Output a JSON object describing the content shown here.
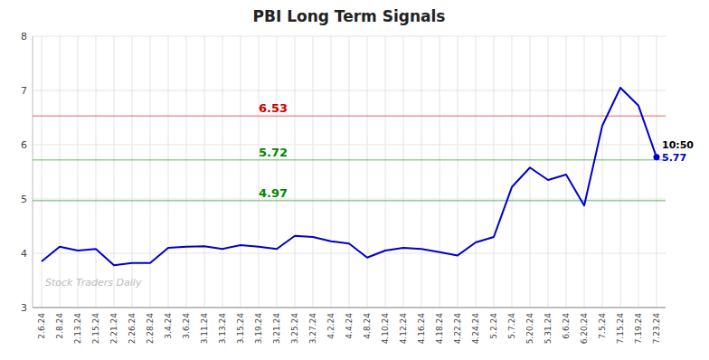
{
  "chart_data": {
    "type": "line",
    "title": "PBI Long Term Signals",
    "categories": [
      "2.6.24",
      "2.8.24",
      "2.13.24",
      "2.15.24",
      "2.21.24",
      "2.26.24",
      "2.28.24",
      "3.4.24",
      "3.6.24",
      "3.11.24",
      "3.13.24",
      "3.15.24",
      "3.19.24",
      "3.21.24",
      "3.25.24",
      "3.27.24",
      "4.2.24",
      "4.4.24",
      "4.8.24",
      "4.10.24",
      "4.12.24",
      "4.16.24",
      "4.18.24",
      "4.22.24",
      "4.24.24",
      "5.2.24",
      "5.7.24",
      "5.20.24",
      "5.31.24",
      "6.6.24",
      "6.20.24",
      "7.5.24",
      "7.15.24",
      "7.19.24",
      "7.23.24"
    ],
    "values": [
      3.85,
      4.12,
      4.05,
      4.08,
      3.78,
      3.82,
      3.82,
      4.1,
      4.12,
      4.13,
      4.08,
      4.15,
      4.12,
      4.08,
      4.32,
      4.3,
      4.22,
      4.18,
      3.92,
      4.05,
      4.1,
      4.08,
      4.02,
      3.96,
      4.2,
      4.3,
      5.22,
      5.58,
      5.35,
      5.45,
      4.88,
      6.35,
      7.05,
      6.72,
      5.77
    ],
    "color": "#0000cc",
    "hlines": [
      {
        "value": 6.53,
        "label": "6.53",
        "color": "#cc0000"
      },
      {
        "value": 5.72,
        "label": "5.72",
        "color": "#008800"
      },
      {
        "value": 4.97,
        "label": "4.97",
        "color": "#008800"
      }
    ],
    "annotations": [
      {
        "text": "10:50",
        "index": 34
      },
      {
        "text": "5.77",
        "index": 34,
        "value": 5.77
      }
    ],
    "watermark": "Stock Traders Daily",
    "ylim": [
      3.0,
      8.0
    ],
    "yticks": [
      3,
      4,
      5,
      6,
      7,
      8
    ],
    "grid": true
  }
}
